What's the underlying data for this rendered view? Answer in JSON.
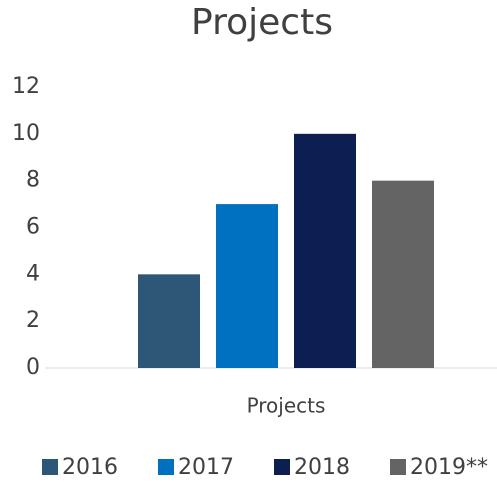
{
  "chart_data": {
    "type": "bar",
    "title": "Projects",
    "categories": [
      "Projects"
    ],
    "series": [
      {
        "name": "2016",
        "color": "#2e5677",
        "values": [
          4
        ]
      },
      {
        "name": "2017",
        "color": "#0070c0",
        "values": [
          7
        ]
      },
      {
        "name": "2018",
        "color": "#0d1f52",
        "values": [
          10
        ]
      },
      {
        "name": "2019**",
        "color": "#646464",
        "values": [
          8
        ]
      }
    ],
    "ylim": [
      0,
      12
    ],
    "yticks": [
      0,
      2,
      4,
      6,
      8,
      10,
      12
    ],
    "grid": false,
    "legend": "bottom"
  }
}
